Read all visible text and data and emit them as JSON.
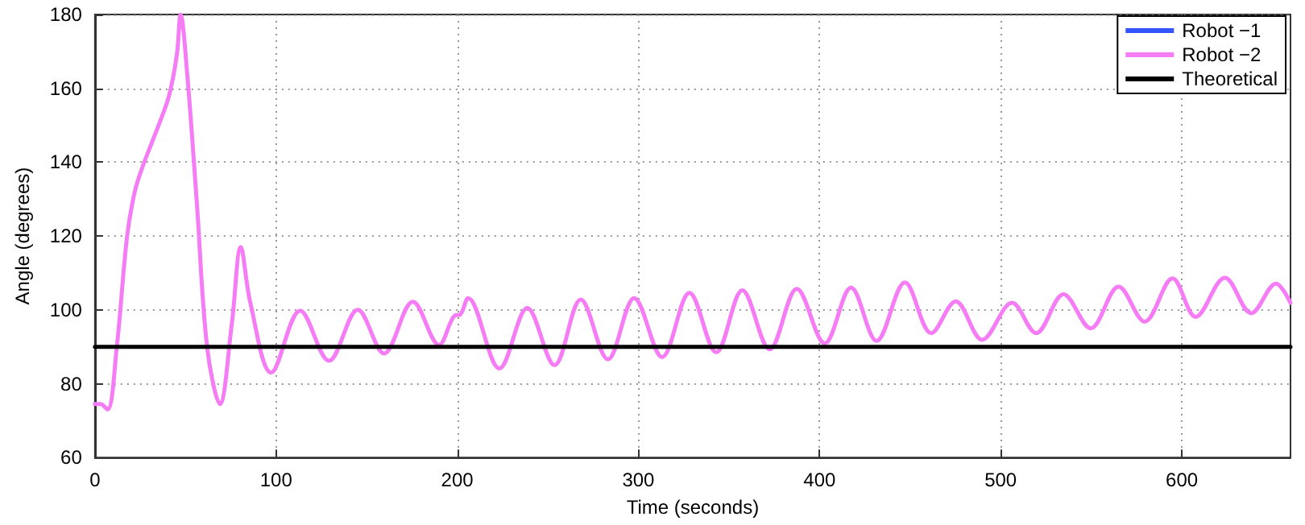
{
  "chart_data": {
    "type": "line",
    "xlabel": "Time (seconds)",
    "ylabel": "Angle (degrees)",
    "xlim": [
      0,
      660
    ],
    "xticks": [
      0,
      100,
      200,
      300,
      400,
      500,
      600
    ],
    "ylim": [
      60,
      180
    ],
    "yticks": [
      60,
      80,
      100,
      120,
      140,
      160,
      180
    ],
    "grid": true,
    "legend": "top right",
    "marker": "none",
    "line_style": "solid",
    "series": [
      {
        "name": "Robot −1",
        "color": "#3355ff"
      },
      {
        "name": "Robot −2",
        "color": "#f57cf5",
        "x": [
          0,
          3,
          7,
          12,
          17.7,
          22,
          26.4,
          35,
          40.9,
          45.2,
          47.3,
          51,
          56.2,
          62,
          69,
          75.6,
          80.5,
          85.8,
          97.3,
          113.3,
          129.2,
          145.1,
          159.6,
          175.5,
          190,
          198.7,
          201.6,
          206,
          223.3,
          238.7,
          253.7,
          268.2,
          283.2,
          297.7,
          313.1,
          328.2,
          343,
          357.4,
          372.5,
          387.5,
          402.9,
          417.4,
          431.5,
          447.2,
          461.7,
          475.2,
          489.8,
          506.3,
          519.6,
          534.7,
          549.7,
          565.1,
          579.5,
          594.9,
          607.6,
          623.8,
          638.3,
          652,
          660
        ],
        "values": [
          74.5,
          74.5,
          73,
          89.6,
          119.7,
          132,
          138.9,
          149.8,
          158,
          169,
          180,
          163.5,
          129.4,
          89.6,
          74.5,
          96.4,
          117,
          101.9,
          83,
          99.8,
          86.2,
          100,
          88.2,
          102.2,
          90.5,
          98.5,
          98.7,
          103.2,
          84.1,
          100.5,
          85,
          102.8,
          86.6,
          103.2,
          87.2,
          104.6,
          88.5,
          105.3,
          89.3,
          105.7,
          90.9,
          106,
          91.6,
          107.4,
          93.7,
          102.3,
          91.9,
          101.9,
          93.7,
          104.2,
          95,
          106.3,
          96.8,
          108.5,
          98.1,
          108.7,
          99.1,
          107.1,
          101.9
        ]
      },
      {
        "name": "Theoretical",
        "color": "#000000",
        "x": [
          0,
          660
        ],
        "values": [
          90,
          90
        ]
      }
    ]
  }
}
